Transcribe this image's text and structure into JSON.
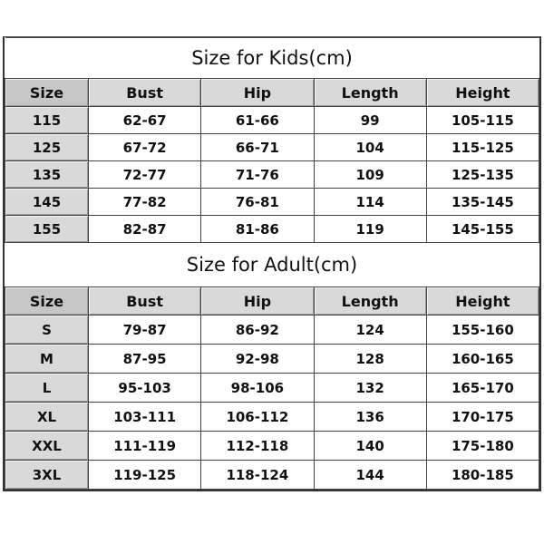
{
  "kids": {
    "title": "Size for Kids(cm)",
    "headers": [
      "Size",
      "Bust",
      "Hip",
      "Length",
      "Height"
    ],
    "rows": [
      [
        "115",
        "62-67",
        "61-66",
        "99",
        "105-115"
      ],
      [
        "125",
        "67-72",
        "66-71",
        "104",
        "115-125"
      ],
      [
        "135",
        "72-77",
        "71-76",
        "109",
        "125-135"
      ],
      [
        "145",
        "77-82",
        "76-81",
        "114",
        "135-145"
      ],
      [
        "155",
        "82-87",
        "81-86",
        "119",
        "145-155"
      ]
    ]
  },
  "adult": {
    "title": "Size for Adult(cm)",
    "headers": [
      "Size",
      "Bust",
      "Hip",
      "Length",
      "Height"
    ],
    "rows": [
      [
        "S",
        "79-87",
        "86-92",
        "124",
        "155-160"
      ],
      [
        "M",
        "87-95",
        "92-98",
        "128",
        "160-165"
      ],
      [
        "L",
        "95-103",
        "98-106",
        "132",
        "165-170"
      ],
      [
        "XL",
        "103-111",
        "106-112",
        "136",
        "170-175"
      ],
      [
        "XXL",
        "111-119",
        "112-118",
        "140",
        "175-180"
      ],
      [
        "3XL",
        "119-125",
        "118-124",
        "144",
        "180-185"
      ]
    ]
  },
  "colors": {
    "header_bg": "#d9d9d9",
    "border": "#444444"
  }
}
